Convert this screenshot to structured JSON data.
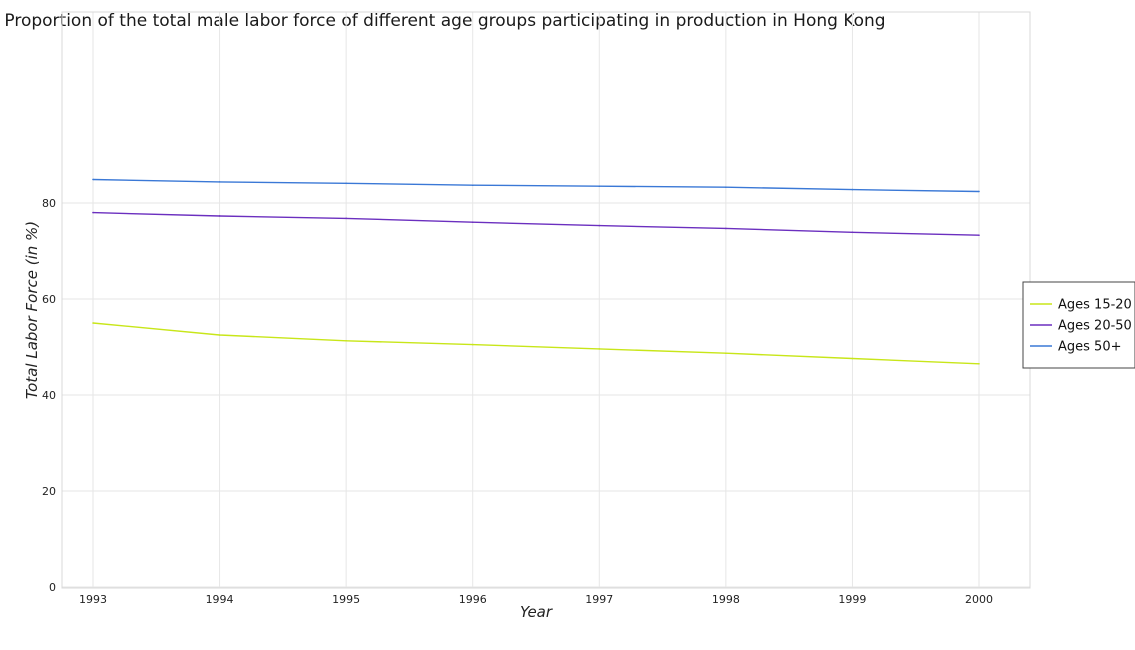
{
  "chart_data": {
    "type": "line",
    "title": "Proportion of the total male labor force of different age groups participating in production in Hong Kong",
    "xlabel": "Year",
    "ylabel": "Total Labor Force (in %)",
    "categories": [
      "1993",
      "1994",
      "1995",
      "1996",
      "1997",
      "1998",
      "1999",
      "2000"
    ],
    "y_ticks": [
      "0",
      "20",
      "40",
      "60",
      "80"
    ],
    "ylim": [
      0,
      88
    ],
    "grid": true,
    "legend_position": "right",
    "series": [
      {
        "name": "Ages 15-20",
        "color": "#c8e619",
        "values": [
          55.0,
          52.5,
          51.3,
          50.5,
          49.6,
          48.7,
          47.6,
          46.5
        ]
      },
      {
        "name": "Ages 20-50",
        "color": "#6b2fbf",
        "values": [
          78.0,
          77.3,
          76.8,
          76.0,
          75.3,
          74.7,
          73.9,
          73.3
        ]
      },
      {
        "name": "Ages 50+",
        "color": "#3a78d6",
        "values": [
          84.9,
          84.4,
          84.1,
          83.7,
          83.5,
          83.3,
          82.8,
          82.4
        ]
      }
    ]
  }
}
